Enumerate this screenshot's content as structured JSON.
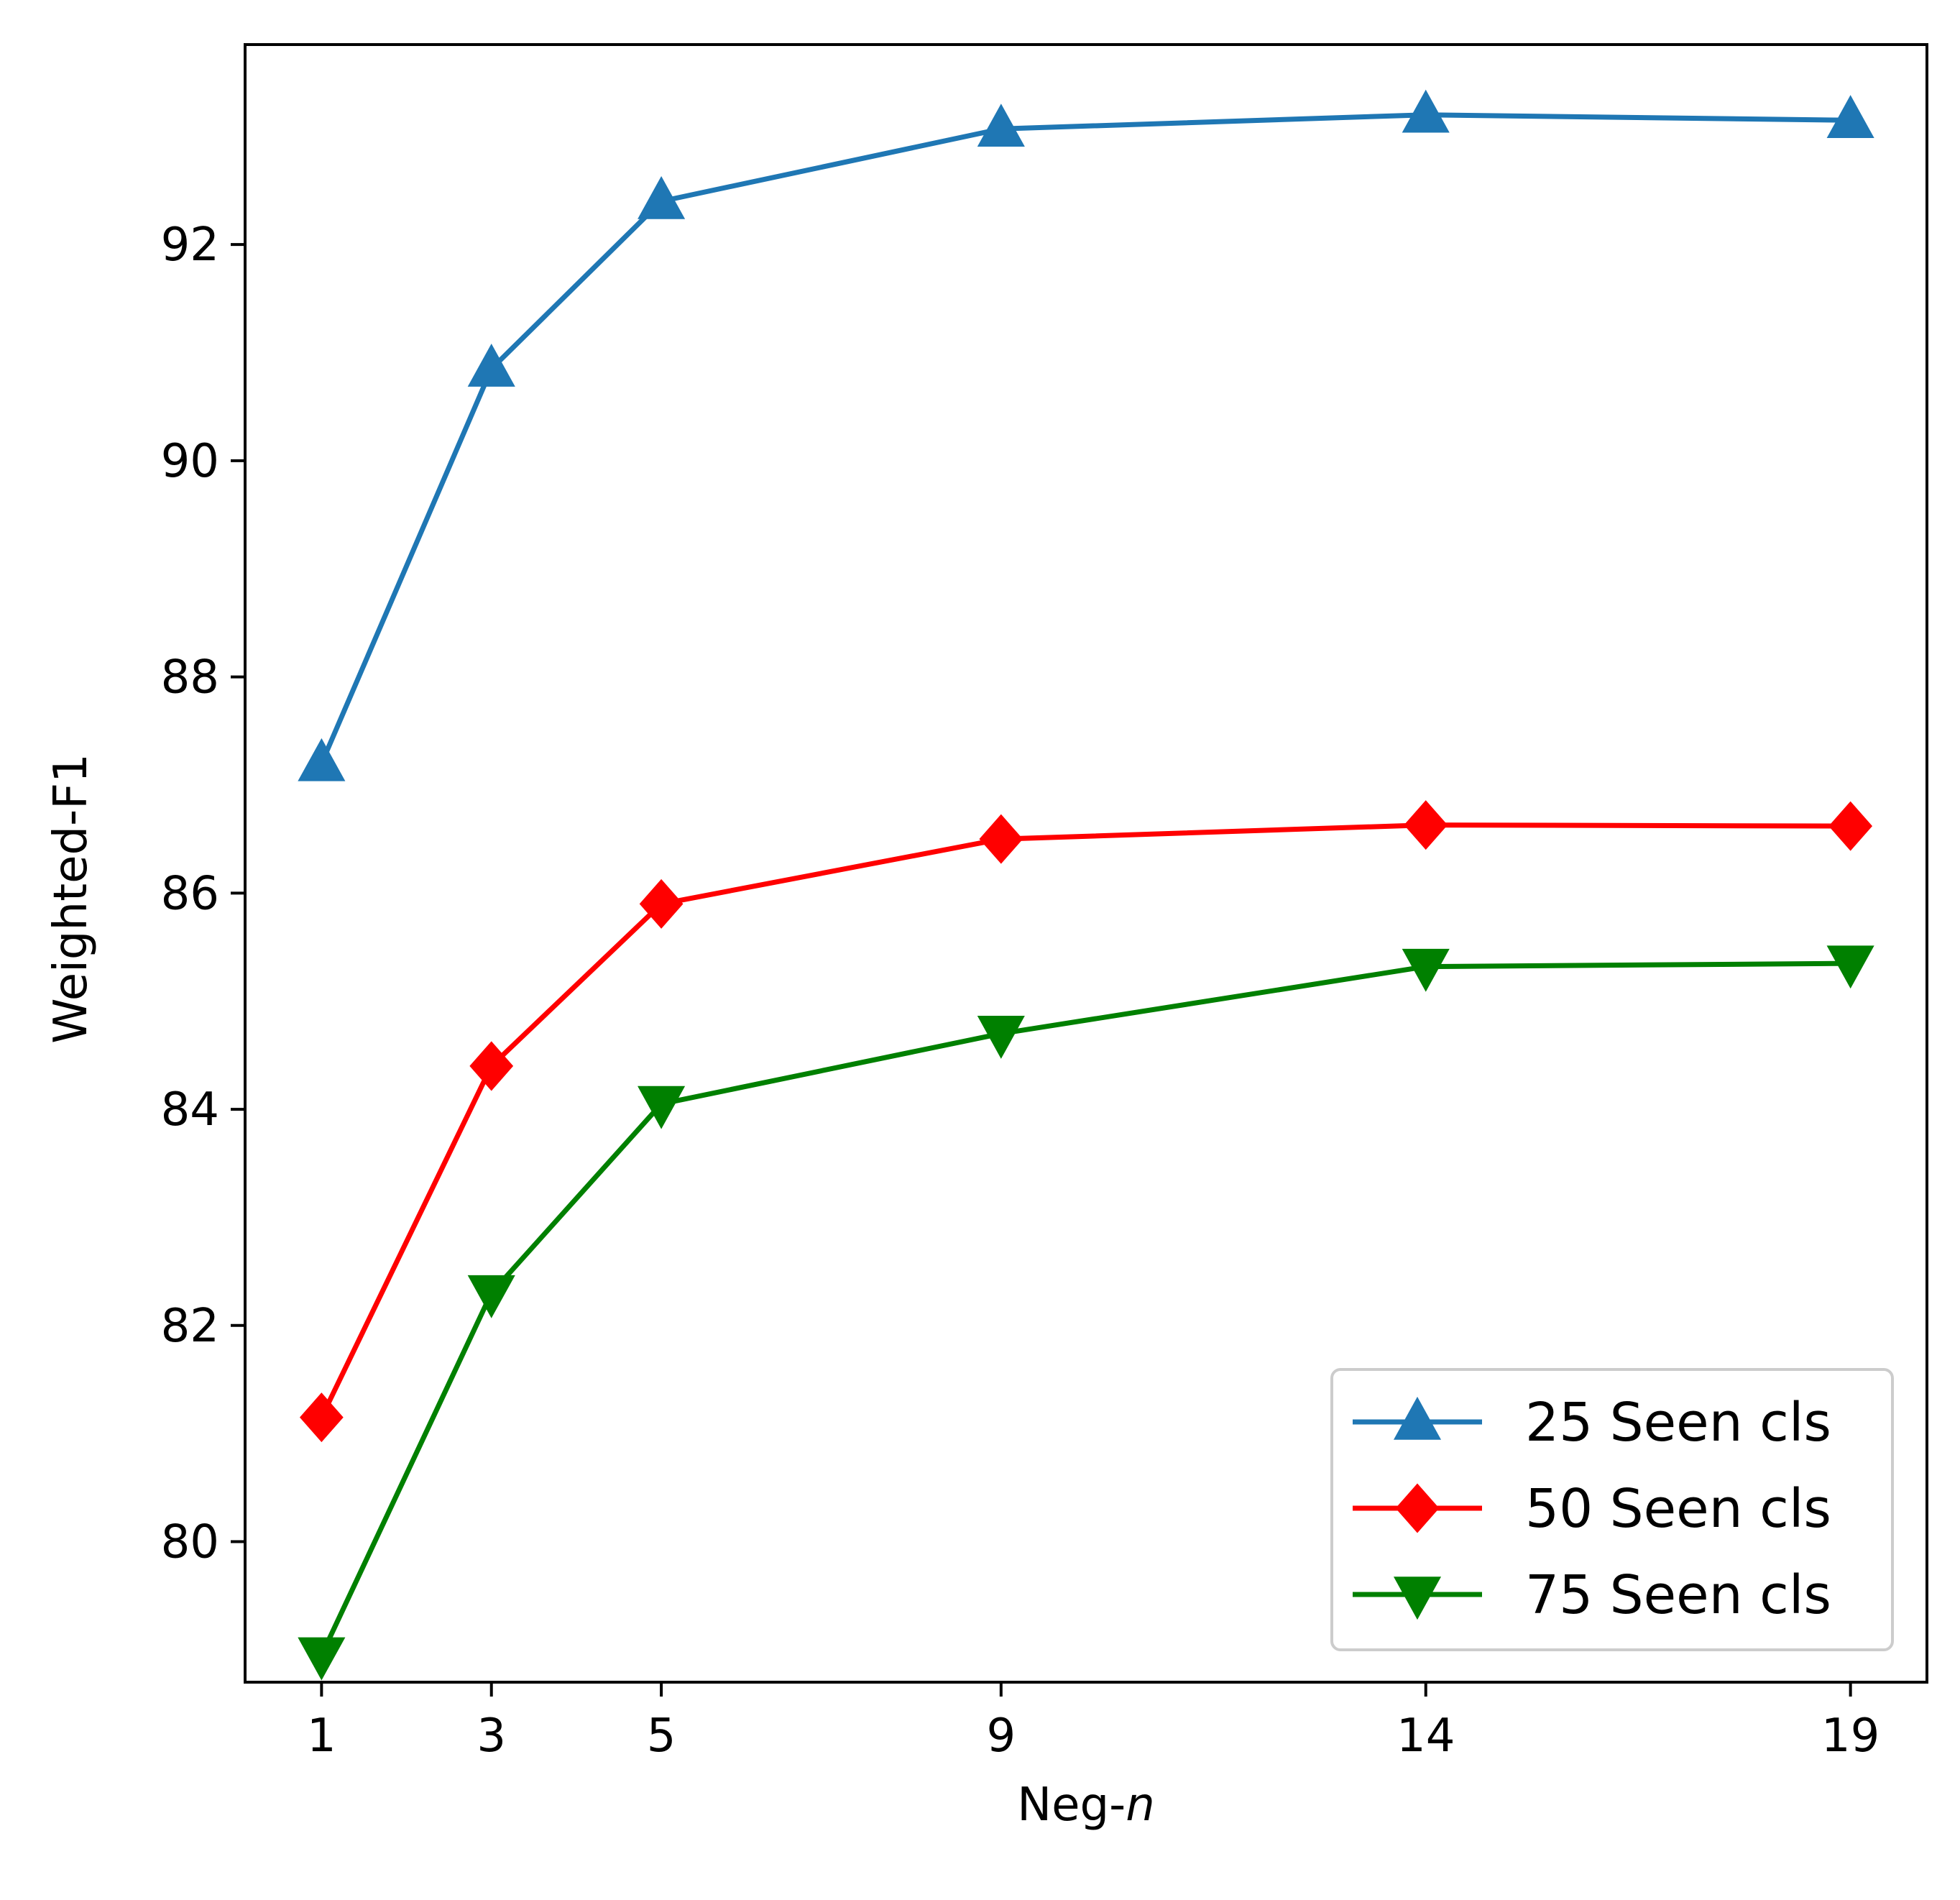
{
  "chart_data": {
    "type": "line",
    "xlabel": "Neg-",
    "xlabel_italic": "n",
    "ylabel": "Weighted-F1",
    "x": [
      1,
      3,
      5,
      9,
      14,
      19
    ],
    "xticks": [
      "1",
      "3",
      "5",
      "9",
      "14",
      "19"
    ],
    "xlim": [
      0.1,
      19.9
    ],
    "ylim": [
      78.7,
      93.85
    ],
    "yticks": [
      80,
      82,
      84,
      86,
      88,
      90,
      92
    ],
    "grid": false,
    "legend_position": "lower-right",
    "series": [
      {
        "name": "25 Seen cls",
        "color": "#1f77b4",
        "marker": "triangle-up",
        "values": [
          87.2,
          90.85,
          92.4,
          93.07,
          93.2,
          93.15
        ]
      },
      {
        "name": "50 Seen cls",
        "color": "#ff0000",
        "marker": "diamond",
        "values": [
          81.15,
          84.4,
          85.9,
          86.5,
          86.63,
          86.62
        ]
      },
      {
        "name": "75 Seen cls",
        "color": "#008000",
        "marker": "triangle-down",
        "values": [
          78.95,
          82.3,
          84.05,
          84.7,
          85.32,
          85.35
        ]
      }
    ]
  }
}
